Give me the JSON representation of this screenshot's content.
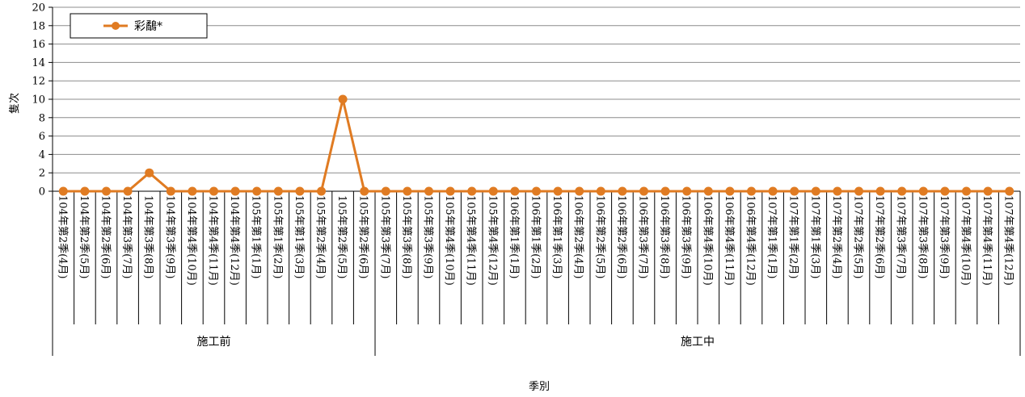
{
  "chart_data": {
    "type": "line",
    "title": "",
    "ylabel": "隻次",
    "xlabel": "季別",
    "ylim": [
      0,
      20
    ],
    "yticks": [
      0,
      2,
      4,
      6,
      8,
      10,
      12,
      14,
      16,
      18,
      20
    ],
    "grid": true,
    "legend_position": "top-left",
    "categories": [
      "104年第2季(4月)",
      "104年第2季(5月)",
      "104年第2季(6月)",
      "104年第3季(7月)",
      "104年第3季(8月)",
      "104年第3季(9月)",
      "104年第4季(10月)",
      "104年第4季(11月)",
      "104年第4季(12月)",
      "105年第1季(1月)",
      "105年第1季(2月)",
      "105年第1季(3月)",
      "105年第2季(4月)",
      "105年第2季(5月)",
      "105年第2季(6月)",
      "105年第3季(7月)",
      "105年第3季(8月)",
      "105年第3季(9月)",
      "105年第4季(10月)",
      "105年第4季(11月)",
      "105年第4季(12月)",
      "106年第1季(1月)",
      "106年第1季(2月)",
      "106年第1季(3月)",
      "106年第2季(4月)",
      "106年第2季(5月)",
      "106年第2季(6月)",
      "106年第3季(7月)",
      "106年第3季(8月)",
      "106年第3季(9月)",
      "106年第4季(10月)",
      "106年第4季(11月)",
      "106年第4季(12月)",
      "107年第1季(1月)",
      "107年第1季(2月)",
      "107年第1季(3月)",
      "107年第2季(4月)",
      "107年第2季(5月)",
      "107年第2季(6月)",
      "107年第3季(7月)",
      "107年第3季(8月)",
      "107年第3季(9月)",
      "107年第4季(10月)",
      "107年第4季(11月)",
      "107年第4季(12月)"
    ],
    "groups": [
      {
        "label": "施工前",
        "start": 0,
        "end": 14
      },
      {
        "label": "施工中",
        "start": 15,
        "end": 44
      }
    ],
    "series": [
      {
        "name": "彩鷸*",
        "color": "#E07B22",
        "values": [
          0,
          0,
          0,
          0,
          2,
          0,
          0,
          0,
          0,
          0,
          0,
          0,
          0,
          10,
          0,
          0,
          0,
          0,
          0,
          0,
          0,
          0,
          0,
          0,
          0,
          0,
          0,
          0,
          0,
          0,
          0,
          0,
          0,
          0,
          0,
          0,
          0,
          0,
          0,
          0,
          0,
          0,
          0,
          0,
          0
        ]
      }
    ]
  }
}
